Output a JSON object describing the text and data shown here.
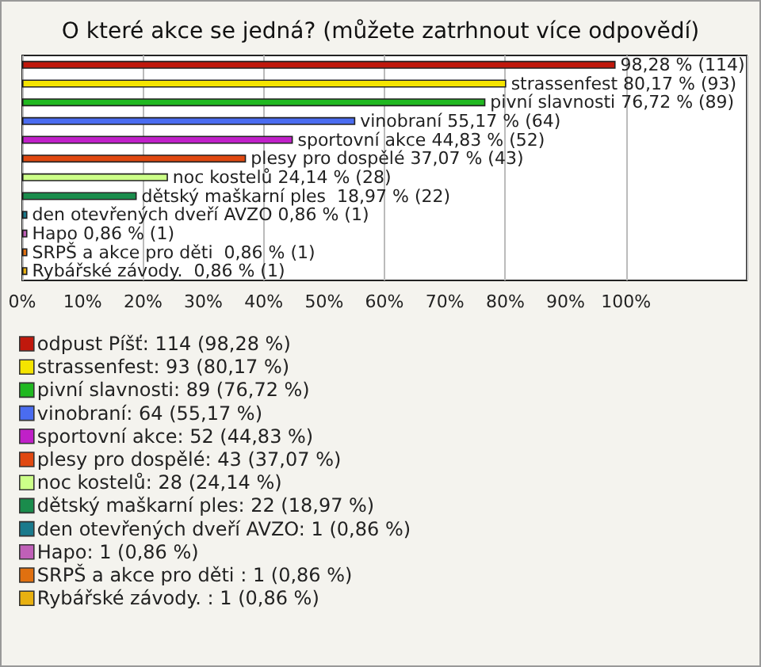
{
  "chart_data": {
    "type": "bar",
    "orientation": "horizontal",
    "stacked": true,
    "title": "O které akce se jedná? (můžete zatrhnout více odpovědí)",
    "categories": [
      null,
      null,
      null,
      null,
      null,
      null,
      null,
      null,
      null,
      null,
      null,
      null
    ],
    "series": [
      {
        "name": "odpust Píšť: 114 (98,28 %)",
        "color": "#c0180c",
        "values": [
          98.28,
          null,
          null,
          null,
          null,
          null,
          null,
          null,
          null,
          null,
          null,
          null
        ],
        "value_labels": [
          "98,28 % (114)",
          null,
          null,
          null,
          null,
          null,
          null,
          null,
          null,
          null,
          null,
          null
        ]
      },
      {
        "name": "strassenfest: 93 (80,17 %)",
        "color": "#f5e400",
        "values": [
          null,
          80.17,
          null,
          null,
          null,
          null,
          null,
          null,
          null,
          null,
          null,
          null
        ],
        "value_labels": [
          null,
          "strassenfest 80,17 % (93)",
          null,
          null,
          null,
          null,
          null,
          null,
          null,
          null,
          null,
          null
        ]
      },
      {
        "name": "pivní slavnosti: 89 (76,72 %)",
        "color": "#20b820",
        "values": [
          null,
          null,
          76.72,
          null,
          null,
          null,
          null,
          null,
          null,
          null,
          null,
          null
        ],
        "value_labels": [
          null,
          null,
          "pivní slavnosti 76,72 % (89)",
          null,
          null,
          null,
          null,
          null,
          null,
          null,
          null,
          null
        ]
      },
      {
        "name": "vinobraní: 64 (55,17 %)",
        "color": "#4a6cf0",
        "values": [
          null,
          null,
          null,
          55.17,
          null,
          null,
          null,
          null,
          null,
          null,
          null,
          null
        ],
        "value_labels": [
          null,
          null,
          null,
          "vinobraní 55,17 % (64)",
          null,
          null,
          null,
          null,
          null,
          null,
          null,
          null
        ]
      },
      {
        "name": "sportovní akce: 52 (44,83 %)",
        "color": "#c020c8",
        "values": [
          null,
          null,
          null,
          null,
          44.83,
          null,
          null,
          null,
          null,
          null,
          null,
          null
        ],
        "value_labels": [
          null,
          null,
          null,
          null,
          "sportovní akce 44,83 % (52)",
          null,
          null,
          null,
          null,
          null,
          null,
          null
        ]
      },
      {
        "name": "plesy pro dospělé: 43 (37,07 %)",
        "color": "#e04810",
        "values": [
          null,
          null,
          null,
          null,
          null,
          37.07,
          null,
          null,
          null,
          null,
          null,
          null
        ],
        "value_labels": [
          null,
          null,
          null,
          null,
          null,
          "plesy pro dospělé 37,07 % (43)",
          null,
          null,
          null,
          null,
          null,
          null
        ]
      },
      {
        "name": "noc kostelů: 28 (24,14 %)",
        "color": "#ccff88",
        "values": [
          null,
          null,
          null,
          null,
          null,
          null,
          24.14,
          null,
          null,
          null,
          null,
          null
        ],
        "value_labels": [
          null,
          null,
          null,
          null,
          null,
          null,
          "noc kostelů 24,14 % (28)",
          null,
          null,
          null,
          null,
          null
        ]
      },
      {
        "name": "dětský maškarní ples: 22 (18,97 %)",
        "color": "#1a8c4c",
        "values": [
          null,
          null,
          null,
          null,
          null,
          null,
          null,
          18.97,
          null,
          null,
          null,
          null
        ],
        "value_labels": [
          null,
          null,
          null,
          null,
          null,
          null,
          null,
          "dětský maškarní ples  18,97 % (22)",
          null,
          null,
          null,
          null
        ]
      },
      {
        "name": "den otevřených dveří AVZO: 1 (0,86 %)",
        "color": "#1a7a8c",
        "values": [
          null,
          null,
          null,
          null,
          null,
          null,
          null,
          null,
          0.86,
          null,
          null,
          null
        ],
        "value_labels": [
          null,
          null,
          null,
          null,
          null,
          null,
          null,
          null,
          "den otevřených dveří AVZO 0,86 % (1)",
          null,
          null,
          null
        ]
      },
      {
        "name": "Hapo: 1 (0,86 %)",
        "color": "#c060b8",
        "values": [
          null,
          null,
          null,
          null,
          null,
          null,
          null,
          null,
          null,
          0.86,
          null,
          null
        ],
        "value_labels": [
          null,
          null,
          null,
          null,
          null,
          null,
          null,
          null,
          null,
          "Hapo 0,86 % (1)",
          null,
          null
        ]
      },
      {
        "name": "SRPŠ a akce pro děti : 1 (0,86 %)",
        "color": "#e07010",
        "values": [
          null,
          null,
          null,
          null,
          null,
          null,
          null,
          null,
          null,
          null,
          0.86,
          null
        ],
        "value_labels": [
          null,
          null,
          null,
          null,
          null,
          null,
          null,
          null,
          null,
          null,
          "SRPŠ a akce pro děti  0,86 % (1)",
          null
        ]
      },
      {
        "name": "Rybářské závody. : 1 (0,86 %)",
        "color": "#e8b010",
        "values": [
          null,
          null,
          null,
          null,
          null,
          null,
          null,
          null,
          null,
          null,
          null,
          0.86
        ],
        "value_labels": [
          null,
          null,
          null,
          null,
          null,
          null,
          null,
          null,
          null,
          null,
          null,
          "Rybářské závody.  0,86 % (1)"
        ]
      }
    ],
    "xlim": [
      0,
      120
    ],
    "xticks": [
      {
        "value": 0,
        "label": "0%"
      },
      {
        "value": 10,
        "label": "10%"
      },
      {
        "value": 20,
        "label": "20%"
      },
      {
        "value": 30,
        "label": "30%"
      },
      {
        "value": 40,
        "label": "40%"
      },
      {
        "value": 50,
        "label": "50%"
      },
      {
        "value": 60,
        "label": "60%"
      },
      {
        "value": 70,
        "label": "70%"
      },
      {
        "value": 80,
        "label": "80%"
      },
      {
        "value": 90,
        "label": "90%"
      },
      {
        "value": 100,
        "label": "100%"
      }
    ],
    "grid": "x",
    "legend": "bottom"
  }
}
